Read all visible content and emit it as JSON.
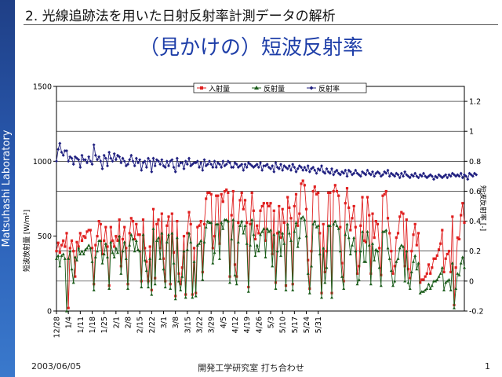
{
  "sidebar": {
    "lab": "Matsuhashi Laboratory"
  },
  "header": {
    "text": "2. 光線追跡法を用いた日射反射率計測データの解析"
  },
  "title": "（見かけの）短波反射率",
  "footer": {
    "date": "2003/06/05",
    "org": "開発工学研究室 打ち合わせ",
    "page": "1"
  },
  "colors": {
    "incident": "#e02020",
    "reflected": "#1a5c1a",
    "ratio": "#202080",
    "title": "#1e3ea8",
    "sidebar": "#2a5db5"
  },
  "chart_data": {
    "type": "line",
    "legend": [
      "入射量",
      "反射量",
      "反射率"
    ],
    "legend_position": "top-center",
    "ylabel_left": "短波放射量 [W/m²]",
    "ylabel_right": "短波反射率 [-]",
    "left_ticks": [
      "0",
      "500",
      "1000",
      "1500"
    ],
    "right_ticks": [
      "-0.2",
      "0",
      "0.2",
      "0.4",
      "0.6",
      "0.8",
      "1",
      "1.2"
    ],
    "ylim_left": [
      0,
      1500
    ],
    "ylim_right": [
      -0.2,
      1.3
    ],
    "grid": "horizontal",
    "x_start": "12/28",
    "x_end": "5/31",
    "x_tick_labels": [
      "12/28",
      "1/4",
      "1/11",
      "1/18",
      "1/25",
      "2/1",
      "2/8",
      "2/15",
      "2/22",
      "3/1",
      "3/8",
      "3/15",
      "3/22",
      "3/29",
      "4/5",
      "4/12",
      "4/19",
      "4/26",
      "5/3",
      "5/10",
      "5/17",
      "5/24",
      "5/31"
    ],
    "series": [
      {
        "name": "入射量",
        "axis": "left",
        "marker": "square",
        "values": [
          400,
          455,
          390,
          440,
          470,
          430,
          520,
          20,
          420,
          470,
          400,
          230,
          460,
          430,
          520,
          470,
          500,
          490,
          530,
          540,
          540,
          420,
          180,
          440,
          500,
          600,
          580,
          380,
          470,
          560,
          430,
          170,
          560,
          470,
          430,
          500,
          470,
          610,
          300,
          480,
          560,
          420,
          180,
          520,
          620,
          600,
          480,
          580,
          510,
          510,
          200,
          610,
          420,
          330,
          200,
          430,
          140,
          680,
          220,
          580,
          610,
          420,
          650,
          350,
          200,
          570,
          630,
          180,
          650,
          390,
          100,
          600,
          250,
          180,
          290,
          500,
          110,
          520,
          660,
          580,
          110,
          420,
          120,
          560,
          570,
          600,
          260,
          580,
          750,
          790,
          790,
          780,
          420,
          500,
          770,
          770,
          450,
          780,
          730,
          800,
          810,
          790,
          230,
          640,
          800,
          310,
          230,
          590,
          740,
          790,
          680,
          740,
          590,
          160,
          580,
          790,
          670,
          480,
          570,
          520,
          670,
          700,
          720,
          470,
          720,
          700,
          720,
          380,
          670,
          190,
          520,
          700,
          490,
          680,
          590,
          170,
          760,
          690,
          620,
          180,
          700,
          780,
          570,
          650,
          850,
          870,
          840,
          680,
          340,
          150,
          400,
          800,
          830,
          780,
          790,
          520,
          120,
          580,
          260,
          400,
          790,
          790,
          120,
          800,
          840,
          800,
          770,
          560,
          320,
          200,
          720,
          820,
          690,
          540,
          620,
          700,
          560,
          250,
          300,
          570,
          760,
          470,
          460,
          760,
          640,
          250,
          650,
          490,
          600,
          580,
          420,
          240,
          770,
          780,
          800,
          620,
          520,
          400,
          250,
          300,
          490,
          520,
          630,
          660,
          650,
          300,
          610,
          280,
          220,
          400,
          510,
          580,
          440,
          520,
          190,
          210,
          210,
          230,
          250,
          310,
          250,
          290,
          350,
          350,
          370,
          410,
          450,
          540,
          260,
          350,
          380,
          400,
          260,
          630,
          40,
          290,
          490,
          480,
          640,
          720,
          590
        ]
      },
      {
        "name": "反射量",
        "axis": "left",
        "marker": "triangle",
        "values": [
          350,
          370,
          300,
          370,
          380,
          350,
          0,
          350,
          400,
          280,
          190,
          360,
          340,
          420,
          380,
          400,
          380,
          410,
          420,
          440,
          420,
          330,
          140,
          360,
          400,
          470,
          470,
          320,
          380,
          450,
          360,
          150,
          460,
          390,
          360,
          420,
          390,
          500,
          250,
          400,
          460,
          350,
          150,
          440,
          510,
          480,
          400,
          470,
          410,
          400,
          160,
          510,
          340,
          270,
          160,
          350,
          110,
          550,
          180,
          470,
          490,
          350,
          520,
          280,
          160,
          460,
          510,
          150,
          520,
          320,
          80,
          490,
          200,
          140,
          230,
          400,
          90,
          410,
          520,
          460,
          90,
          330,
          100,
          440,
          450,
          470,
          210,
          460,
          560,
          600,
          590,
          590,
          320,
          390,
          580,
          580,
          350,
          590,
          550,
          610,
          610,
          600,
          190,
          480,
          610,
          240,
          180,
          460,
          570,
          600,
          520,
          570,
          450,
          130,
          440,
          610,
          510,
          370,
          440,
          400,
          510,
          530,
          550,
          360,
          550,
          530,
          540,
          300,
          510,
          150,
          400,
          530,
          370,
          520,
          450,
          140,
          580,
          520,
          470,
          140,
          530,
          590,
          430,
          490,
          620,
          630,
          610,
          500,
          250,
          120,
          300,
          580,
          600,
          560,
          570,
          380,
          90,
          420,
          190,
          290,
          570,
          570,
          90,
          580,
          600,
          570,
          550,
          400,
          230,
          150,
          510,
          580,
          490,
          380,
          440,
          490,
          400,
          180,
          210,
          400,
          530,
          330,
          330,
          530,
          440,
          180,
          450,
          340,
          410,
          400,
          290,
          170,
          530,
          530,
          540,
          420,
          350,
          270,
          170,
          200,
          330,
          350,
          420,
          440,
          430,
          200,
          400,
          190,
          150,
          260,
          330,
          370,
          280,
          320,
          120,
          130,
          130,
          140,
          150,
          180,
          150,
          170,
          200,
          200,
          210,
          230,
          250,
          290,
          140,
          190,
          200,
          210,
          140,
          320,
          20,
          150,
          250,
          240,
          320,
          360,
          290
        ]
      },
      {
        "name": "反射率",
        "axis": "right",
        "marker": "diamond",
        "values": [
          0.8,
          0.88,
          0.92,
          0.86,
          0.84,
          0.87,
          0.87,
          0.8,
          0.83,
          0.82,
          0.78,
          0.83,
          0.82,
          0.81,
          0.76,
          0.84,
          0.81,
          0.81,
          0.79,
          0.83,
          0.8,
          0.78,
          0.91,
          0.84,
          0.81,
          0.83,
          0.8,
          0.75,
          0.84,
          0.82,
          0.77,
          0.86,
          0.82,
          0.8,
          0.85,
          0.81,
          0.84,
          0.83,
          0.79,
          0.82,
          0.8,
          0.77,
          0.78,
          0.81,
          0.84,
          0.8,
          0.77,
          0.82,
          0.79,
          0.81,
          0.74,
          0.79,
          0.8,
          0.76,
          0.82,
          0.8,
          0.73,
          0.82,
          0.77,
          0.81,
          0.8,
          0.78,
          0.81,
          0.77,
          0.76,
          0.8,
          0.77,
          0.8,
          0.81,
          0.76,
          0.73,
          0.82,
          0.77,
          0.79,
          0.79,
          0.75,
          0.8,
          0.78,
          0.82,
          0.77,
          0.78,
          0.79,
          0.79,
          0.8,
          0.76,
          0.79,
          0.74,
          0.81,
          0.77,
          0.78,
          0.8,
          0.78,
          0.76,
          0.8,
          0.76,
          0.79,
          0.78,
          0.76,
          0.8,
          0.77,
          0.78,
          0.8,
          0.79,
          0.76,
          0.76,
          0.79,
          0.78,
          0.76,
          0.77,
          0.78,
          0.74,
          0.78,
          0.76,
          0.79,
          0.78,
          0.77,
          0.76,
          0.77,
          0.78,
          0.76,
          0.79,
          0.74,
          0.77,
          0.77,
          0.78,
          0.76,
          0.75,
          0.77,
          0.73,
          0.79,
          0.76,
          0.75,
          0.78,
          0.74,
          0.77,
          0.76,
          0.75,
          0.77,
          0.74,
          0.78,
          0.76,
          0.73,
          0.75,
          0.77,
          0.76,
          0.74,
          0.76,
          0.74,
          0.77,
          0.73,
          0.75,
          0.76,
          0.74,
          0.72,
          0.75,
          0.74,
          0.77,
          0.73,
          0.72,
          0.75,
          0.73,
          0.72,
          0.75,
          0.71,
          0.73,
          0.74,
          0.72,
          0.71,
          0.73,
          0.72,
          0.74,
          0.7,
          0.74,
          0.73,
          0.71,
          0.72,
          0.74,
          0.72,
          0.71,
          0.7,
          0.73,
          0.72,
          0.71,
          0.74,
          0.72,
          0.71,
          0.73,
          0.7,
          0.72,
          0.73,
          0.72,
          0.7,
          0.71,
          0.73,
          0.72,
          0.74,
          0.7,
          0.72,
          0.71,
          0.7,
          0.72,
          0.71,
          0.69,
          0.72,
          0.7,
          0.73,
          0.71,
          0.7,
          0.69,
          0.71,
          0.7,
          0.72,
          0.7,
          0.69,
          0.71,
          0.7,
          0.72,
          0.7,
          0.69,
          0.7,
          0.71,
          0.7,
          0.68,
          0.7,
          0.69,
          0.71,
          0.7,
          0.69,
          0.7,
          0.71,
          0.69,
          0.71,
          0.7,
          0.72,
          0.71,
          0.7,
          0.71,
          0.7,
          0.72,
          0.69,
          0.71,
          0.7,
          0.68,
          0.72,
          0.71,
          0.7,
          0.72,
          0.71
        ]
      }
    ]
  }
}
